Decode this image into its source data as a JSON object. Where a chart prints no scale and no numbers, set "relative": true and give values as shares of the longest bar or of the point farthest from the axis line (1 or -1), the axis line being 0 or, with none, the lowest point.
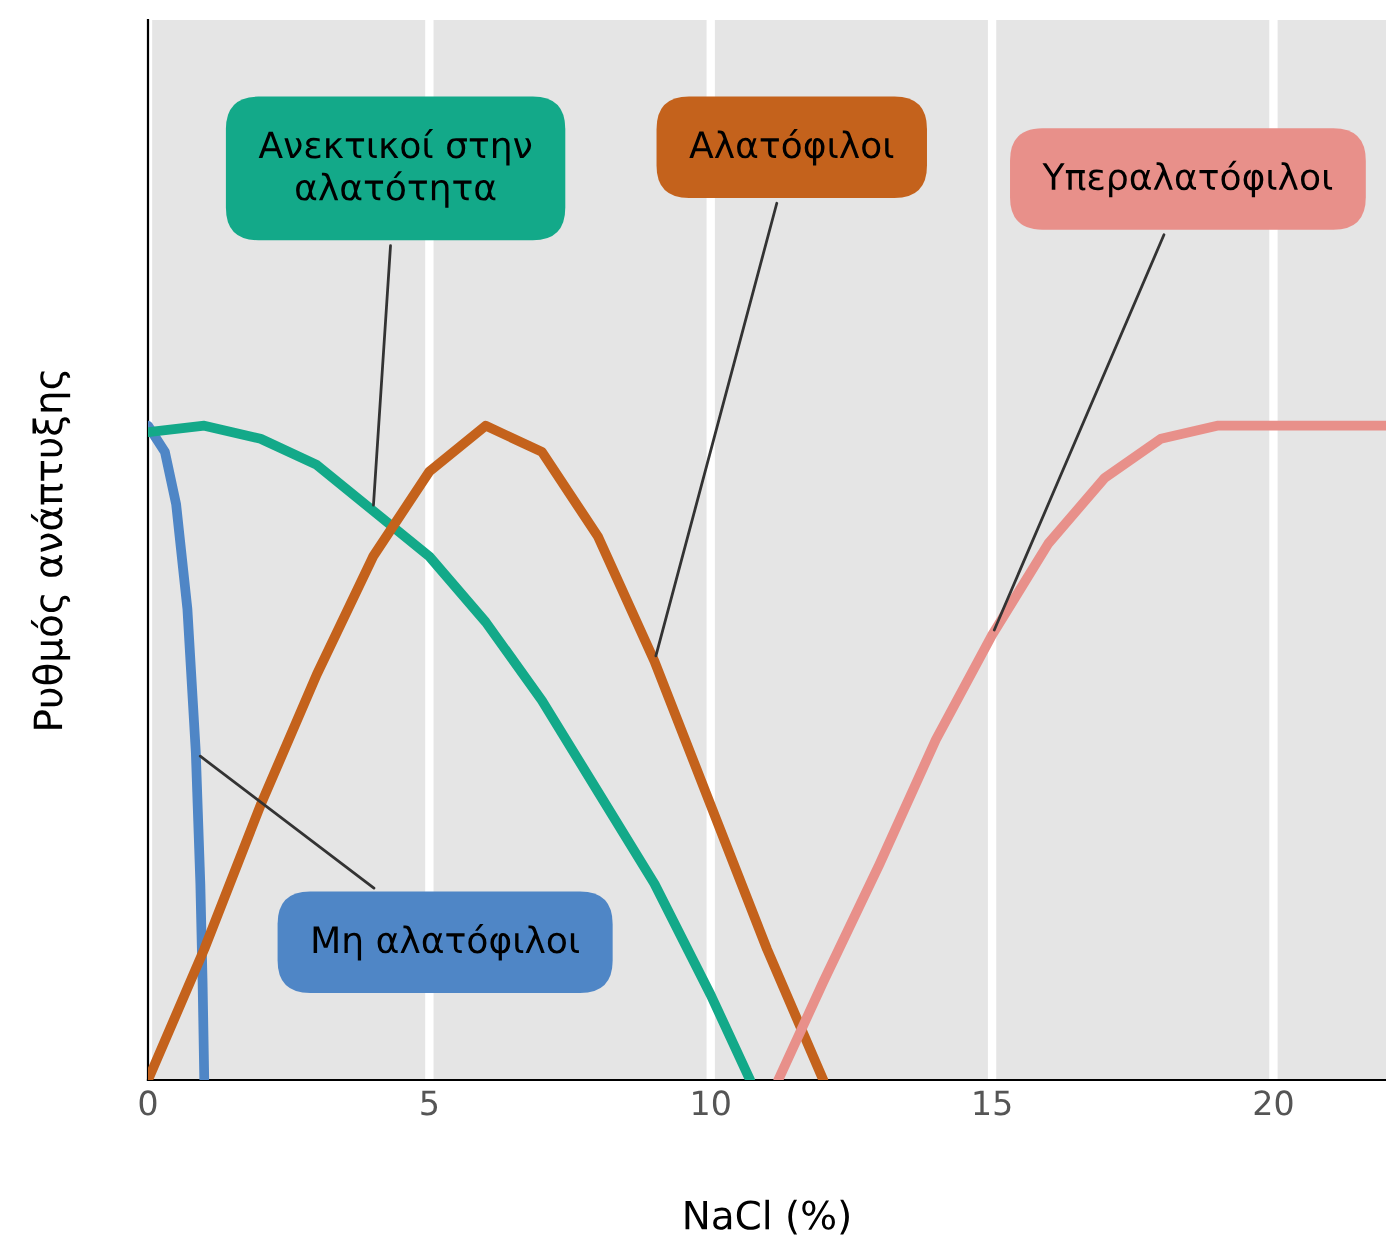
{
  "chart_data": {
    "type": "line",
    "relative": true,
    "xlabel": "NaCl (%)",
    "ylabel": "Ρυθμός ανάπτυξης",
    "xlim": [
      0,
      22
    ],
    "xticks": [
      0,
      5,
      10,
      15,
      20
    ],
    "grid": "x",
    "tick_labels": "x",
    "series": [
      {
        "name": "Μη αλατόφιλοι",
        "color": "#4f86c6",
        "x": [
          0,
          0.3,
          0.5,
          0.7,
          0.85,
          0.93,
          0.97,
          1.0
        ],
        "values": [
          1,
          0.96,
          0.88,
          0.72,
          0.5,
          0.3,
          0.15,
          0
        ]
      },
      {
        "name": "Ανεκτικοί στην\nαλατότητα",
        "color": "#13a989",
        "x": [
          0,
          1,
          2,
          3,
          4,
          5,
          6,
          7,
          8,
          9,
          10,
          10.7
        ],
        "values": [
          0.99,
          1,
          0.98,
          0.94,
          0.87,
          0.8,
          0.7,
          0.58,
          0.44,
          0.3,
          0.13,
          0
        ]
      },
      {
        "name": "Αλατόφιλοι",
        "color": "#c4621c",
        "x": [
          0,
          1,
          2,
          3,
          4,
          5,
          6,
          7,
          8,
          9,
          10,
          11,
          12
        ],
        "values": [
          0,
          0.2,
          0.42,
          0.62,
          0.8,
          0.93,
          1,
          0.96,
          0.83,
          0.64,
          0.42,
          0.2,
          0
        ]
      },
      {
        "name": "Υπεραλατόφιλοι",
        "color": "#e8908a",
        "x": [
          11.2,
          12,
          13,
          14,
          15,
          16,
          17,
          18,
          19,
          22
        ],
        "values": [
          0,
          0.15,
          0.33,
          0.52,
          0.68,
          0.82,
          0.92,
          0.98,
          1,
          1
        ]
      }
    ]
  }
}
